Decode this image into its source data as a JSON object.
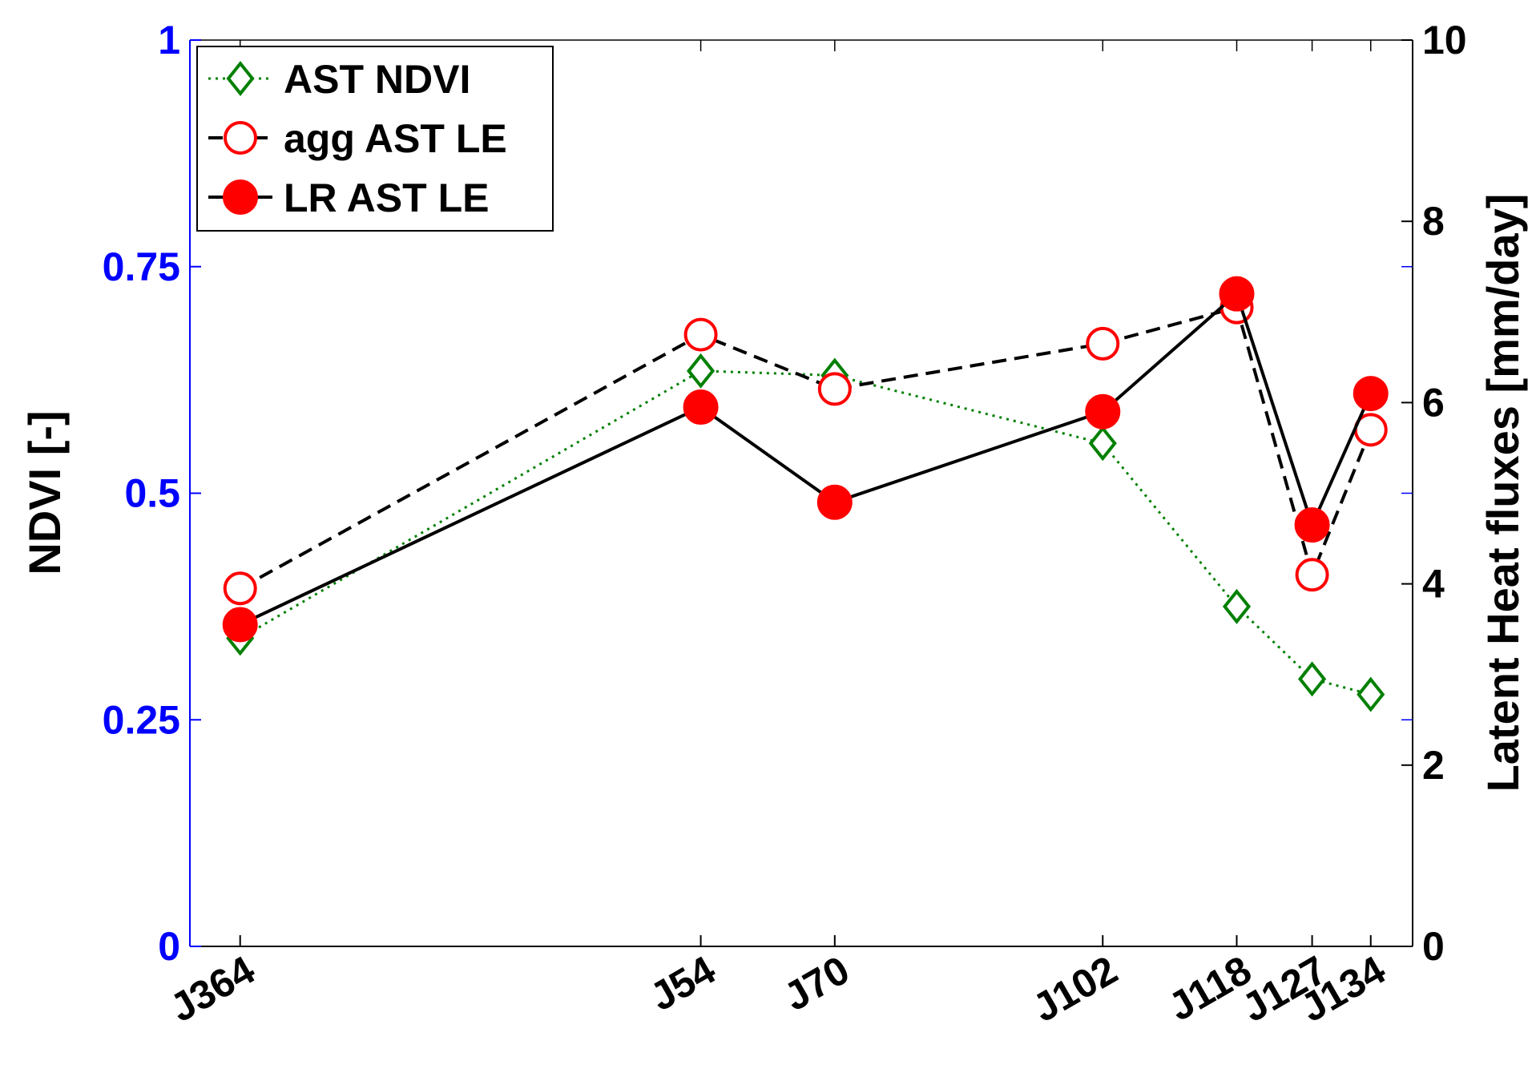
{
  "chart_data": {
    "type": "line",
    "title": "",
    "x_ticks": [
      {
        "label": "J364",
        "value": -1
      },
      {
        "label": "J54",
        "value": 54
      },
      {
        "label": "J70",
        "value": 70
      },
      {
        "label": "J102",
        "value": 102
      },
      {
        "label": "J118",
        "value": 118
      },
      {
        "label": "J127",
        "value": 127
      },
      {
        "label": "J134",
        "value": 134
      }
    ],
    "left_axis": {
      "label": "NDVI [-]",
      "color": "#0000ff",
      "ylim": [
        0,
        1
      ],
      "ticks": [
        0,
        0.25,
        0.5,
        0.75,
        1
      ],
      "tick_labels": [
        "0",
        "0.25",
        "0.5",
        "0.75",
        "1"
      ]
    },
    "right_axis": {
      "label": "Latent Heat fluxes [mm/day]",
      "color": "#000000",
      "ylim": [
        0,
        10
      ],
      "ticks": [
        0,
        2,
        4,
        6,
        8,
        10
      ],
      "tick_labels": [
        "0",
        "2",
        "4",
        "6",
        "8",
        "10"
      ]
    },
    "series": [
      {
        "name": "AST NDVI",
        "axis": "left",
        "color": "#008000",
        "line_style": "dotted",
        "marker": "diamond-open",
        "values": [
          0.34,
          0.635,
          0.63,
          0.555,
          0.375,
          0.295,
          0.278
        ]
      },
      {
        "name": "agg AST LE",
        "axis": "right",
        "color": "#ff0000",
        "line_color": "#000000",
        "line_style": "dashed",
        "marker": "circle-open",
        "values": [
          3.95,
          6.75,
          6.15,
          6.65,
          7.05,
          4.1,
          5.7
        ]
      },
      {
        "name": "LR AST LE",
        "axis": "right",
        "color": "#ff0000",
        "line_color": "#000000",
        "line_style": "solid",
        "marker": "circle-filled",
        "values": [
          3.55,
          5.95,
          4.9,
          5.9,
          7.2,
          4.65,
          6.1
        ]
      }
    ],
    "legend": {
      "placement": "top-left"
    },
    "grid": false
  }
}
